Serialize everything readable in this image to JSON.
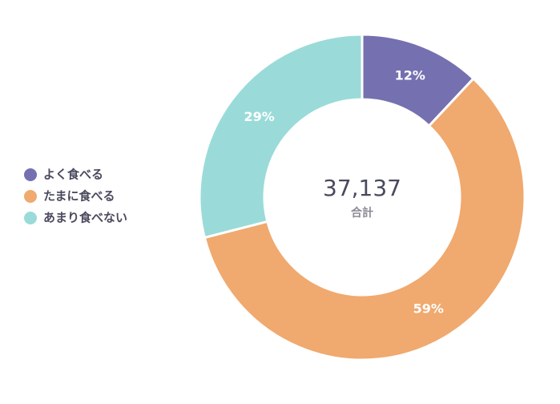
{
  "chart_data": {
    "type": "donut",
    "categories": [
      "よく食べる",
      "たまに食べる",
      "あまり食べない"
    ],
    "values": [
      12,
      59,
      29
    ],
    "value_labels": [
      "12%",
      "59%",
      "29%"
    ],
    "colors": [
      "#7570b0",
      "#f0a96e",
      "#9adbd9"
    ],
    "total_label": "37,137",
    "total_caption": "合計",
    "legend": "left"
  }
}
